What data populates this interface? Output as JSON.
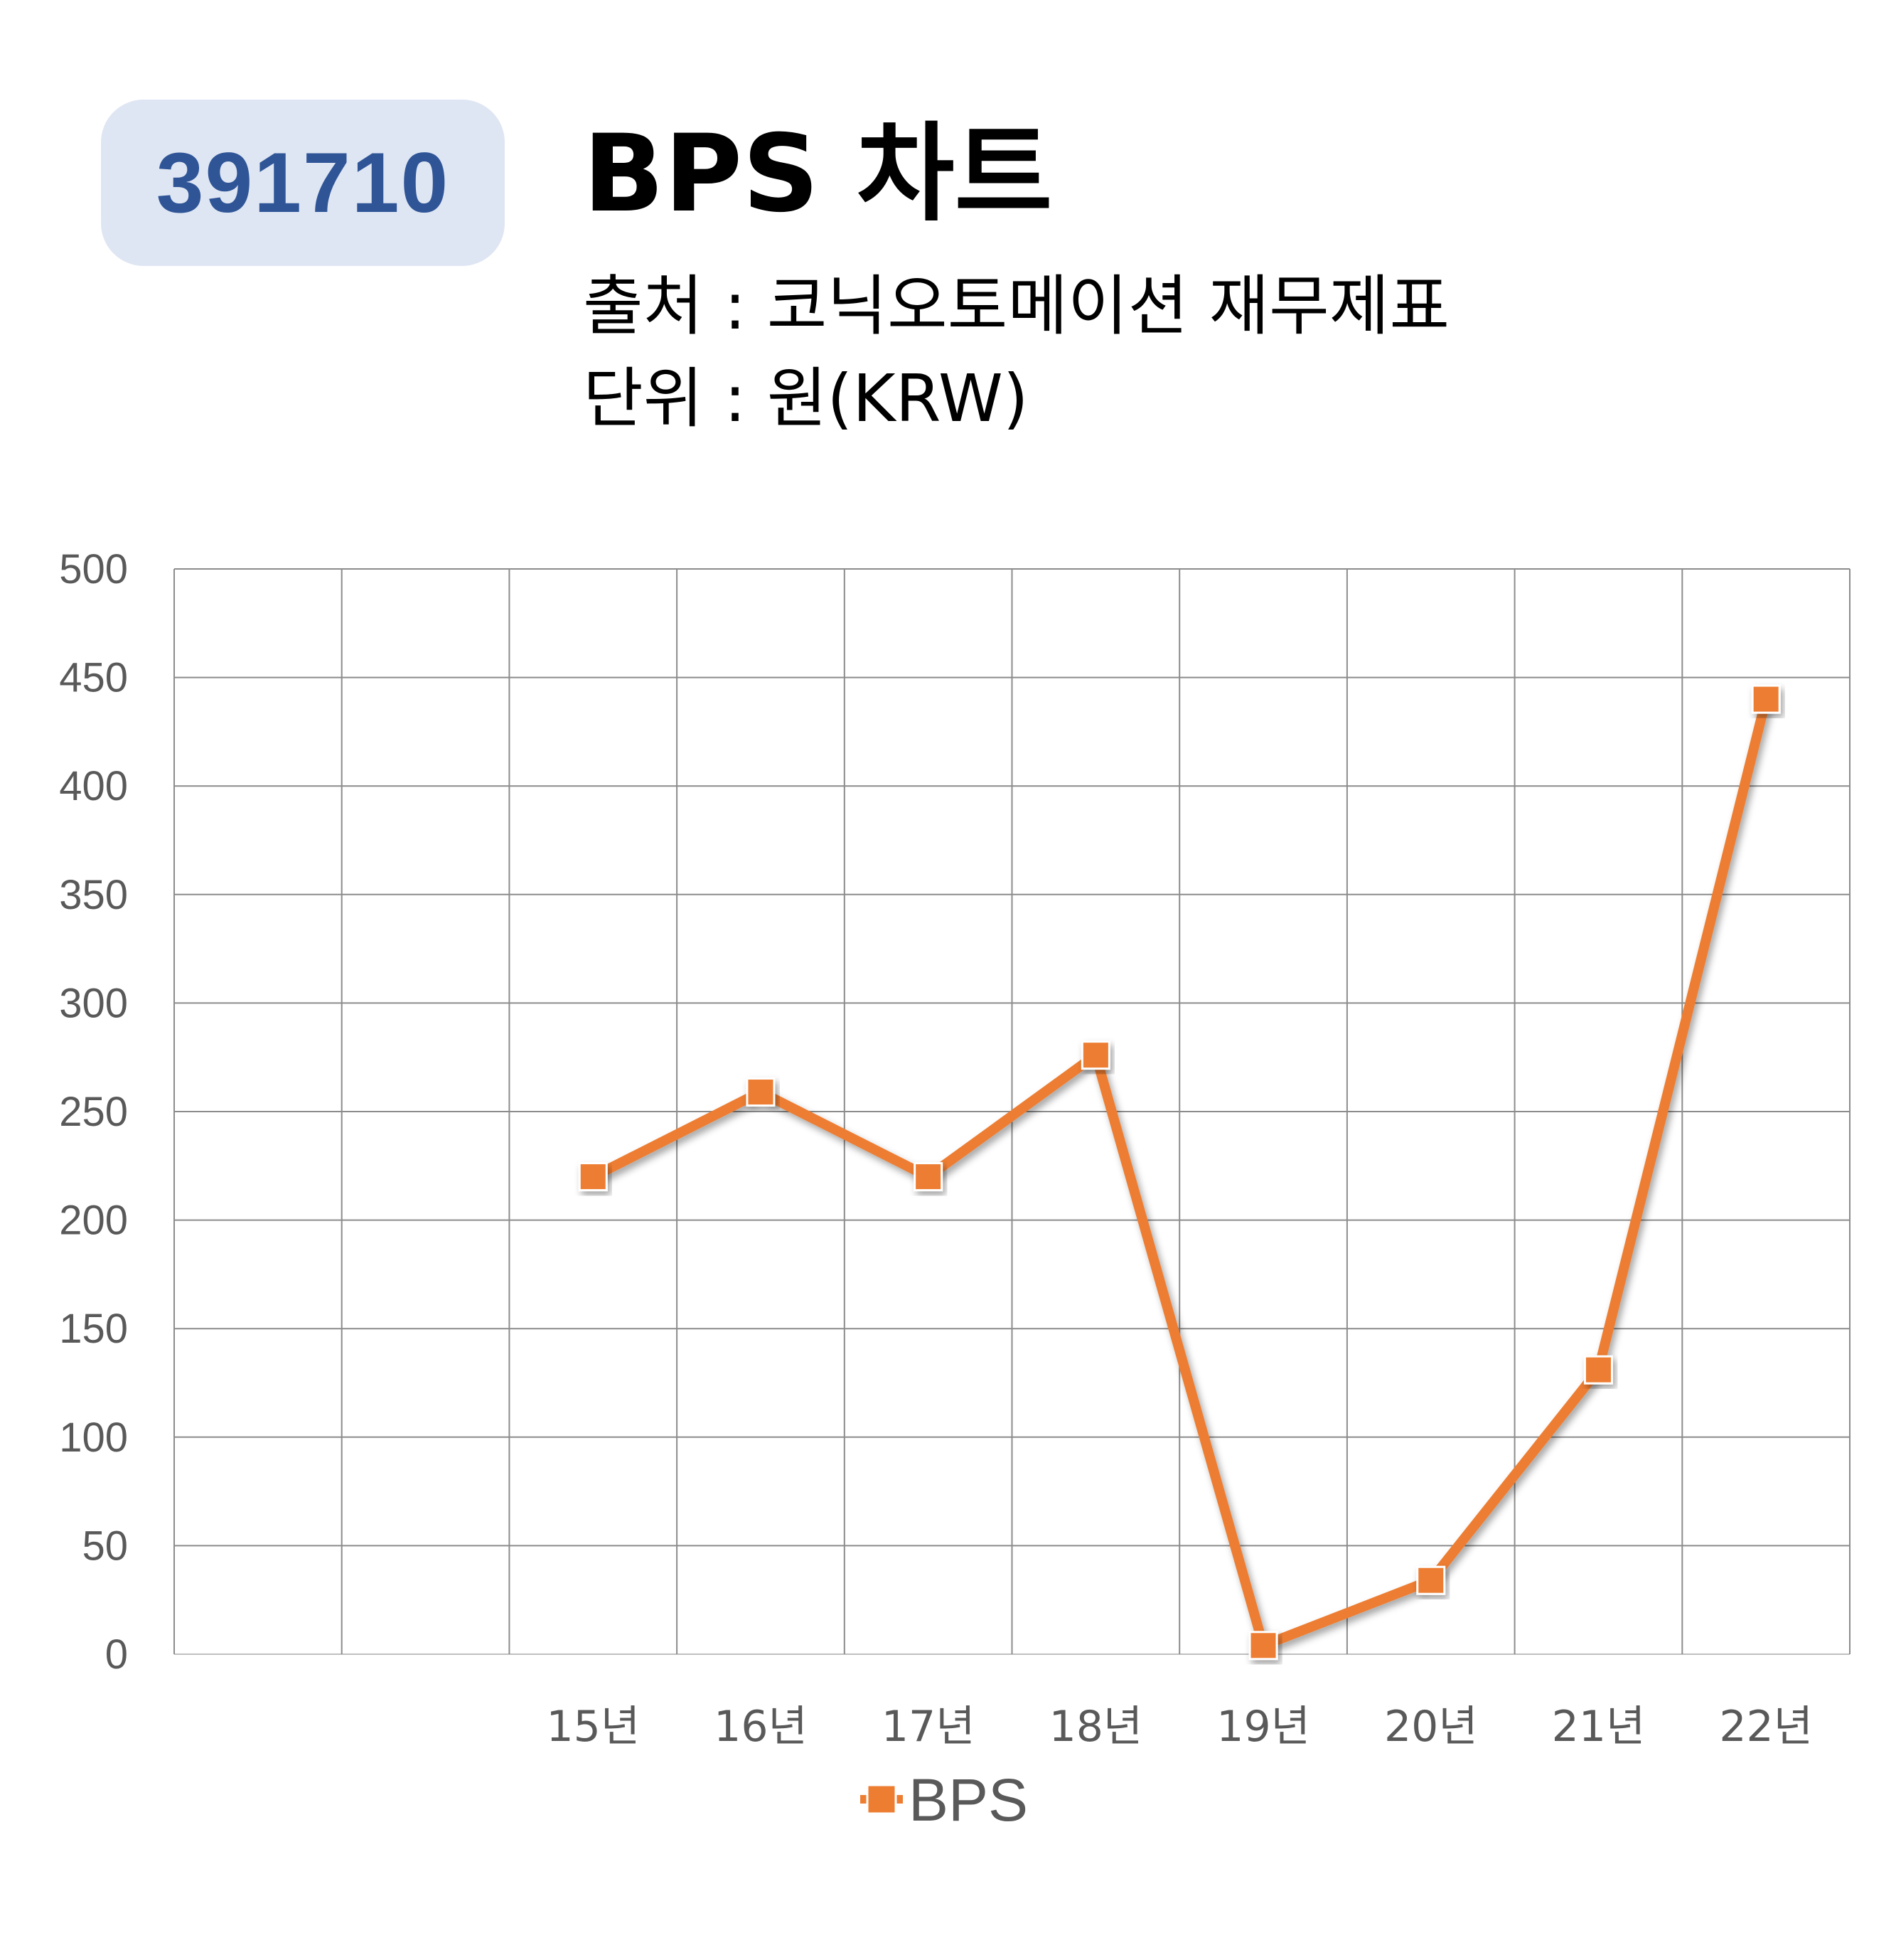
{
  "badge": {
    "code": "391710"
  },
  "header": {
    "title": "BPS 차트",
    "source": "출처 : 코닉오토메이션 재무제표",
    "unit": "단위 : 원(KRW)"
  },
  "colors": {
    "series": "#ed7d31",
    "badge_bg": "#dfe6f3",
    "badge_text": "#2f5597",
    "grid": "#8c8c8c"
  },
  "chart_data": {
    "type": "line",
    "title": "BPS 차트",
    "categories": [
      "",
      "",
      "15년",
      "16년",
      "17년",
      "18년",
      "19년",
      "20년",
      "21년",
      "22년"
    ],
    "series": [
      {
        "name": "BPS",
        "values": [
          null,
          null,
          220,
          259,
          220,
          276,
          4,
          34,
          131,
          440
        ]
      }
    ],
    "ylim": [
      0,
      500
    ],
    "yticks": [
      0,
      50,
      100,
      150,
      200,
      250,
      300,
      350,
      400,
      450,
      500
    ],
    "grid": true,
    "legend": "bottom-center",
    "marker": "square"
  }
}
